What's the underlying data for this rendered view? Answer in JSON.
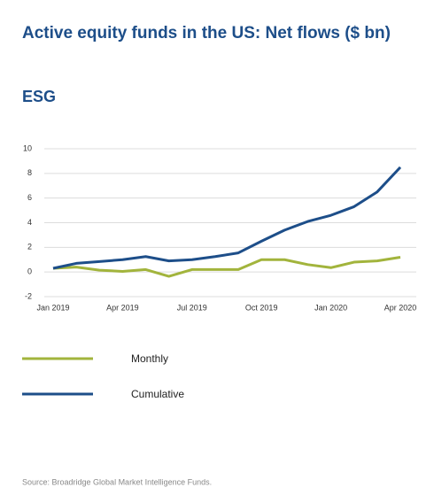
{
  "chart_data": {
    "type": "line",
    "title": "Active equity funds in the US: Net flows ($ bn)",
    "subtitle": "ESG",
    "source": "Source: Broadridge Global Market Intelligence Funds.",
    "categories": [
      "Jan 2019",
      null,
      null,
      "Apr 2019",
      null,
      null,
      "Jul 2019",
      null,
      null,
      "Oct 2019",
      null,
      null,
      "Jan 2020",
      null,
      null,
      "Apr 2020"
    ],
    "series": [
      {
        "name": "Monthly",
        "color": "#a2b43c",
        "values": [
          0.3,
          0.4,
          0.15,
          0.05,
          0.2,
          -0.35,
          0.2,
          0.2,
          0.2,
          1.0,
          1.0,
          0.6,
          0.35,
          0.8,
          0.9,
          1.2
        ]
      },
      {
        "name": "Cumulative",
        "color": "#1d4e89",
        "values": [
          0.3,
          0.7,
          0.85,
          1.0,
          1.25,
          0.9,
          1.0,
          1.25,
          1.55,
          2.5,
          3.4,
          4.1,
          4.6,
          5.3,
          6.5,
          8.5
        ]
      }
    ],
    "ylim": [
      -2,
      10
    ],
    "yticks": [
      -2,
      0,
      2,
      4,
      6,
      8,
      10
    ],
    "grid": true
  }
}
